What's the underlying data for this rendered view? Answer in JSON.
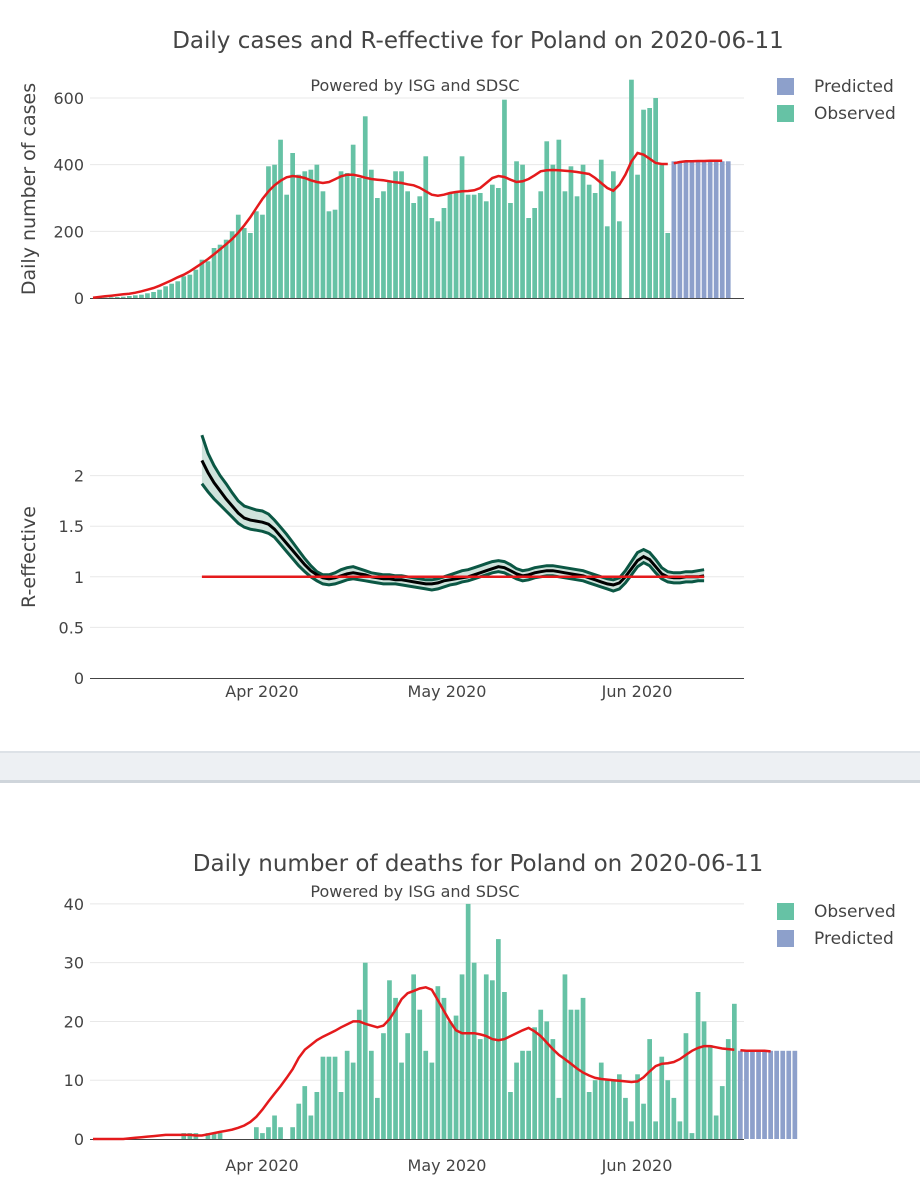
{
  "chart_data": [
    {
      "type": "bar",
      "title": "Daily cases and R-effective for Poland on 2020-06-11",
      "subtitle": "Powered by ISG and SDSC",
      "xlabel": "",
      "ylabel": "Daily number of cases",
      "ylim": [
        0,
        660
      ],
      "yticks": [
        0,
        200,
        400,
        600
      ],
      "x_start": "2020-03-04",
      "legend": [
        "Predicted",
        "Observed"
      ],
      "observed": [
        0,
        0,
        1,
        2,
        3,
        4,
        6,
        8,
        10,
        14,
        18,
        25,
        35,
        43,
        50,
        65,
        70,
        85,
        115,
        110,
        150,
        160,
        175,
        200,
        250,
        210,
        195,
        260,
        250,
        395,
        400,
        475,
        310,
        435,
        370,
        380,
        385,
        400,
        320,
        260,
        265,
        380,
        375,
        460,
        360,
        545,
        385,
        300,
        320,
        350,
        380,
        380,
        320,
        285,
        305,
        425,
        240,
        230,
        270,
        315,
        320,
        425,
        310,
        310,
        315,
        290,
        340,
        330,
        595,
        285,
        410,
        400,
        240,
        270,
        320,
        470,
        400,
        475,
        320,
        395,
        305,
        400,
        340,
        315,
        415,
        215,
        380,
        230,
        0,
        655,
        370,
        565,
        570,
        600,
        400,
        195
      ],
      "predicted": [
        410,
        410,
        410,
        410,
        410,
        410,
        410,
        410,
        410,
        410
      ],
      "smoothed": [
        1,
        3,
        5,
        7,
        9,
        11,
        13,
        16,
        20,
        25,
        30,
        37,
        45,
        53,
        62,
        70,
        80,
        92,
        104,
        117,
        131,
        146,
        161,
        177,
        196,
        218,
        242,
        270,
        297,
        320,
        338,
        352,
        362,
        366,
        364,
        360,
        353,
        348,
        345,
        348,
        356,
        365,
        370,
        370,
        366,
        361,
        357,
        355,
        353,
        350,
        347,
        345,
        341,
        338,
        331,
        320,
        310,
        307,
        310,
        315,
        318,
        320,
        321,
        323,
        330,
        345,
        360,
        366,
        363,
        355,
        348,
        350,
        357,
        368,
        380,
        383,
        384,
        383,
        382,
        380,
        378,
        375,
        372,
        360,
        345,
        330,
        322,
        340,
        370,
        410,
        435,
        430,
        418,
        405,
        402,
        402,
        404,
        408,
        410,
        410,
        411,
        411,
        412,
        412,
        412
      ]
    },
    {
      "type": "line",
      "xlabel": "",
      "ylabel": "R-effective",
      "ylim": [
        0,
        2.5
      ],
      "yticks": [
        0,
        0.5,
        1,
        1.5,
        2
      ],
      "yticklabels": [
        "0",
        "0.5",
        "1",
        "1.5",
        "2"
      ],
      "xticks": [
        "Apr 2020",
        "May 2020",
        "Jun 2020"
      ],
      "x_start": "2020-03-22",
      "reference": 1,
      "mean": [
        2.15,
        2.03,
        1.93,
        1.85,
        1.77,
        1.7,
        1.63,
        1.58,
        1.56,
        1.55,
        1.54,
        1.52,
        1.47,
        1.4,
        1.33,
        1.26,
        1.19,
        1.12,
        1.06,
        1.02,
        0.99,
        0.98,
        0.99,
        1.01,
        1.03,
        1.04,
        1.03,
        1.02,
        1.0,
        0.99,
        0.98,
        0.98,
        0.97,
        0.97,
        0.96,
        0.95,
        0.94,
        0.93,
        0.93,
        0.94,
        0.96,
        0.97,
        0.98,
        0.99,
        1.0,
        1.02,
        1.04,
        1.06,
        1.08,
        1.1,
        1.09,
        1.06,
        1.03,
        1.01,
        1.02,
        1.04,
        1.05,
        1.06,
        1.06,
        1.05,
        1.04,
        1.03,
        1.02,
        1.01,
        0.99,
        0.97,
        0.95,
        0.93,
        0.92,
        0.94,
        1.0,
        1.08,
        1.16,
        1.2,
        1.17,
        1.1,
        1.03,
        1.0,
        0.99,
        0.99,
        1.0,
        1.0,
        1.0,
        1.01
      ],
      "upper": [
        2.4,
        2.22,
        2.1,
        2.0,
        1.92,
        1.83,
        1.75,
        1.7,
        1.68,
        1.66,
        1.65,
        1.62,
        1.56,
        1.49,
        1.42,
        1.34,
        1.26,
        1.18,
        1.11,
        1.05,
        1.02,
        1.02,
        1.04,
        1.07,
        1.09,
        1.1,
        1.08,
        1.06,
        1.04,
        1.03,
        1.02,
        1.02,
        1.01,
        1.01,
        1.0,
        0.99,
        0.98,
        0.97,
        0.97,
        0.98,
        1.0,
        1.02,
        1.04,
        1.06,
        1.07,
        1.09,
        1.11,
        1.13,
        1.15,
        1.16,
        1.15,
        1.12,
        1.08,
        1.06,
        1.07,
        1.09,
        1.1,
        1.11,
        1.11,
        1.1,
        1.09,
        1.08,
        1.07,
        1.06,
        1.04,
        1.02,
        1.0,
        0.98,
        0.97,
        0.99,
        1.06,
        1.15,
        1.24,
        1.27,
        1.24,
        1.17,
        1.09,
        1.05,
        1.04,
        1.04,
        1.05,
        1.05,
        1.06,
        1.07
      ],
      "lower": [
        1.92,
        1.84,
        1.77,
        1.71,
        1.65,
        1.59,
        1.53,
        1.49,
        1.47,
        1.46,
        1.45,
        1.43,
        1.39,
        1.32,
        1.25,
        1.18,
        1.11,
        1.05,
        1.0,
        0.96,
        0.93,
        0.92,
        0.93,
        0.95,
        0.97,
        0.98,
        0.97,
        0.96,
        0.95,
        0.94,
        0.93,
        0.93,
        0.93,
        0.92,
        0.91,
        0.9,
        0.89,
        0.88,
        0.87,
        0.88,
        0.9,
        0.92,
        0.93,
        0.95,
        0.96,
        0.98,
        1.0,
        1.02,
        1.04,
        1.05,
        1.04,
        1.01,
        0.98,
        0.96,
        0.97,
        0.99,
        1.0,
        1.01,
        1.01,
        1.0,
        0.99,
        0.98,
        0.97,
        0.96,
        0.94,
        0.92,
        0.9,
        0.88,
        0.86,
        0.88,
        0.94,
        1.02,
        1.1,
        1.14,
        1.11,
        1.04,
        0.98,
        0.95,
        0.94,
        0.94,
        0.95,
        0.95,
        0.96,
        0.96
      ]
    },
    {
      "type": "bar",
      "title": "Daily number of deaths for Poland on 2020-06-11",
      "subtitle": "Powered by ISG and SDSC",
      "xlabel": "",
      "ylabel": "",
      "ylim": [
        0,
        41
      ],
      "yticks": [
        0,
        10,
        20,
        30,
        40
      ],
      "xticks": [
        "Apr 2020",
        "May 2020",
        "Jun 2020"
      ],
      "x_start": "2020-03-04",
      "legend": [
        "Observed",
        "Predicted"
      ],
      "observed": [
        0,
        0,
        0,
        0,
        0,
        0,
        0,
        0,
        0,
        0,
        0,
        0,
        0,
        0,
        0,
        1,
        1,
        1,
        0,
        1,
        1,
        1,
        0,
        0,
        0,
        0,
        0,
        2,
        1,
        2,
        4,
        2,
        0,
        2,
        6,
        9,
        4,
        8,
        14,
        14,
        14,
        8,
        15,
        13,
        22,
        30,
        15,
        7,
        18,
        27,
        24,
        13,
        18,
        28,
        22,
        15,
        13,
        26,
        24,
        20,
        21,
        28,
        40,
        30,
        17,
        28,
        27,
        34,
        25,
        8,
        13,
        15,
        15,
        19,
        22,
        20,
        17,
        7,
        28,
        22,
        22,
        24,
        8,
        10,
        13,
        10,
        10,
        11,
        7,
        3,
        11,
        6,
        17,
        3,
        14,
        10,
        7,
        3,
        18,
        1,
        25,
        20,
        16,
        4,
        9,
        17,
        23
      ],
      "predicted": [
        15,
        15,
        15,
        15,
        15,
        15,
        15,
        15,
        15,
        15
      ],
      "smoothed": [
        0,
        0,
        0,
        0,
        0,
        0,
        0.1,
        0.2,
        0.3,
        0.4,
        0.5,
        0.6,
        0.7,
        0.7,
        0.7,
        0.7,
        0.7,
        0.6,
        0.6,
        0.8,
        1,
        1.2,
        1.4,
        1.6,
        1.9,
        2.3,
        2.9,
        3.8,
        5,
        6.4,
        7.7,
        9,
        10.4,
        11.9,
        13.8,
        15.2,
        16,
        16.8,
        17.4,
        17.9,
        18.4,
        19,
        19.5,
        20,
        20,
        19.6,
        19.3,
        19,
        19.3,
        20.4,
        22,
        23.8,
        24.8,
        25.2,
        25.6,
        25.8,
        25.4,
        23.6,
        21.8,
        20,
        18.5,
        18,
        18,
        18,
        17.8,
        17.5,
        17,
        16.8,
        17,
        17.5,
        18,
        18.5,
        18.9,
        18.3,
        17.5,
        16.4,
        15.3,
        14.3,
        13.6,
        12.8,
        12,
        11.3,
        10.8,
        10.4,
        10.2,
        10.1,
        10,
        9.9,
        9.8,
        9.7,
        9.8,
        10.5,
        11.5,
        12.4,
        12.8,
        12.9,
        13.1,
        13.6,
        14.3,
        15,
        15.5,
        15.8,
        15.8,
        15.6,
        15.4,
        15.3,
        15.2,
        15.1,
        15.0,
        15.0,
        15.0,
        15.0,
        14.9
      ]
    }
  ],
  "colors": {
    "observed": "#66c2a5",
    "predicted": "#8da0cb",
    "fit": "#e41a1c",
    "reff_mean": "#000000",
    "reff_band_edge": "#0b5744",
    "reff_band_fill": "#cfe3dc",
    "grid": "#e8e8e8"
  }
}
